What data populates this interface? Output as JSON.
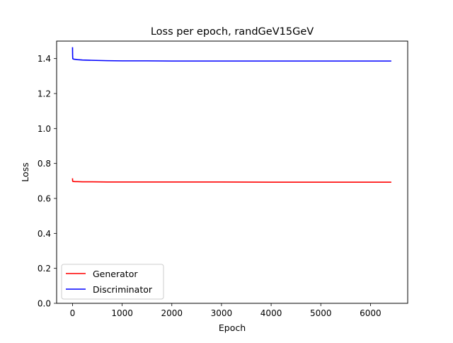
{
  "chart_data": {
    "type": "line",
    "title": "Loss per epoch, randGeV15GeV",
    "xlabel": "Epoch",
    "ylabel": "Loss",
    "xlim": [
      -320,
      6750
    ],
    "ylim": [
      0.0,
      1.5
    ],
    "xticks": [
      0,
      1000,
      2000,
      3000,
      4000,
      5000,
      6000
    ],
    "xtick_labels": [
      "0",
      "1000",
      "2000",
      "3000",
      "4000",
      "5000",
      "6000"
    ],
    "yticks": [
      0.0,
      0.2,
      0.4,
      0.6,
      0.8,
      1.0,
      1.2,
      1.4
    ],
    "ytick_labels": [
      "0.0",
      "0.2",
      "0.4",
      "0.6",
      "0.8",
      "1.0",
      "1.2",
      "1.4"
    ],
    "grid": false,
    "legend_position": "lower left",
    "series": [
      {
        "name": "Generator",
        "color": "#ff0000",
        "x": [
          0,
          2,
          5,
          10,
          20,
          50,
          100,
          200,
          400,
          700,
          1000,
          1500,
          2000,
          3000,
          4000,
          5000,
          6000,
          6420
        ],
        "y": [
          0.715,
          0.7,
          0.698,
          0.697,
          0.697,
          0.696,
          0.696,
          0.695,
          0.695,
          0.694,
          0.694,
          0.694,
          0.694,
          0.694,
          0.693,
          0.693,
          0.693,
          0.693
        ]
      },
      {
        "name": "Discriminator",
        "color": "#0000ff",
        "x": [
          0,
          2,
          5,
          10,
          20,
          50,
          100,
          200,
          400,
          700,
          1000,
          1500,
          2000,
          3000,
          4000,
          5000,
          6000,
          6420
        ],
        "y": [
          1.465,
          1.42,
          1.4,
          1.398,
          1.397,
          1.396,
          1.394,
          1.392,
          1.39,
          1.388,
          1.387,
          1.387,
          1.386,
          1.386,
          1.386,
          1.386,
          1.386,
          1.386
        ]
      }
    ]
  }
}
